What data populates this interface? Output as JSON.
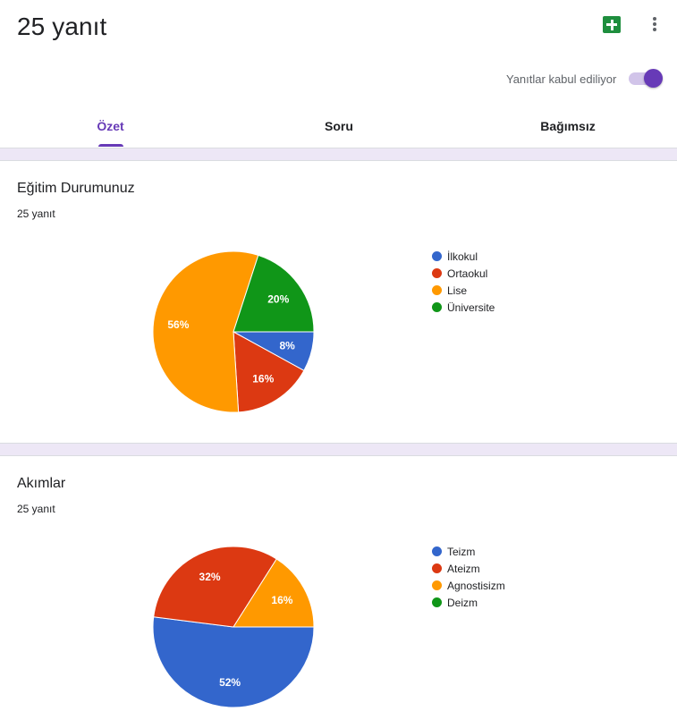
{
  "header": {
    "title": "25 yanıt",
    "accepting_label": "Yanıtlar kabul ediliyor",
    "accepting": true,
    "sheets_icon": "google-sheets-icon",
    "more_icon": "more-vert-icon"
  },
  "tabs": [
    {
      "label": "Özet",
      "active": true
    },
    {
      "label": "Soru",
      "active": false
    },
    {
      "label": "Bağımsız",
      "active": false
    }
  ],
  "colors": {
    "accent": "#673ab7",
    "blue": "#3366cc",
    "red": "#dc3912",
    "orange": "#ff9900",
    "green": "#109618"
  },
  "questions": [
    {
      "title": "Eğitim Durumunuz",
      "count": "25 yanıt",
      "chart_data": {
        "type": "pie",
        "categories": [
          "İlkokul",
          "Ortaokul",
          "Lise",
          "Üniversite"
        ],
        "values": [
          8,
          16,
          56,
          20
        ],
        "labels": [
          "8%",
          "16%",
          "56%",
          "20%"
        ],
        "colors": [
          "#3366cc",
          "#dc3912",
          "#ff9900",
          "#109618"
        ],
        "legend": "right"
      }
    },
    {
      "title": "Akımlar",
      "count": "25 yanıt",
      "chart_data": {
        "type": "pie",
        "categories": [
          "Teizm",
          "Ateizm",
          "Agnostisizm",
          "Deizm"
        ],
        "values": [
          52,
          32,
          16,
          0
        ],
        "labels": [
          "52%",
          "32%",
          "16%",
          ""
        ],
        "colors": [
          "#3366cc",
          "#dc3912",
          "#ff9900",
          "#109618"
        ],
        "legend": "right"
      }
    }
  ]
}
